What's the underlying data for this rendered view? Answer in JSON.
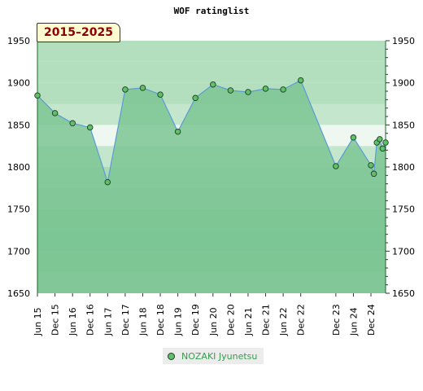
{
  "chart_data": {
    "type": "line",
    "title": "WOF ratinglist",
    "period_badge": "2015–2025",
    "ylim": [
      1650,
      1950
    ],
    "y_ticks": [
      1650,
      1700,
      1750,
      1800,
      1850,
      1900,
      1950
    ],
    "x_ticks": [
      "Jun 15",
      "Dec 15",
      "Jun 16",
      "Dec 16",
      "Jun 17",
      "Dec 17",
      "Jun 18",
      "Dec 18",
      "Jun 19",
      "Dec 19",
      "Jun 20",
      "Dec 20",
      "Jun 21",
      "Dec 21",
      "Jun 22",
      "Dec 22",
      "Dec 23",
      "Jun 24",
      "Dec 24"
    ],
    "x_tick_dates": [
      "2015-06",
      "2015-12",
      "2016-06",
      "2016-12",
      "2017-06",
      "2017-12",
      "2018-06",
      "2018-12",
      "2019-06",
      "2019-12",
      "2020-06",
      "2020-12",
      "2021-06",
      "2021-12",
      "2022-06",
      "2022-12",
      "2023-12",
      "2024-06",
      "2024-12"
    ],
    "legend_position": "bottom",
    "series": [
      {
        "name": "NOZAKI Jyunetsu",
        "points": [
          {
            "x": "2015-06",
            "y": 1885
          },
          {
            "x": "2015-12",
            "y": 1864
          },
          {
            "x": "2016-06",
            "y": 1852
          },
          {
            "x": "2016-12",
            "y": 1847
          },
          {
            "x": "2017-06",
            "y": 1782
          },
          {
            "x": "2017-12",
            "y": 1892
          },
          {
            "x": "2018-06",
            "y": 1894
          },
          {
            "x": "2018-12",
            "y": 1886
          },
          {
            "x": "2019-06",
            "y": 1842
          },
          {
            "x": "2019-12",
            "y": 1882
          },
          {
            "x": "2020-06",
            "y": 1898
          },
          {
            "x": "2020-12",
            "y": 1891
          },
          {
            "x": "2021-06",
            "y": 1889
          },
          {
            "x": "2021-12",
            "y": 1893
          },
          {
            "x": "2022-06",
            "y": 1892
          },
          {
            "x": "2022-12",
            "y": 1903
          },
          {
            "x": "2023-12",
            "y": 1801
          },
          {
            "x": "2024-06",
            "y": 1835
          },
          {
            "x": "2024-12",
            "y": 1802
          },
          {
            "x": "2025-01",
            "y": 1792
          },
          {
            "x": "2025-02",
            "y": 1829
          },
          {
            "x": "2025-03",
            "y": 1833
          },
          {
            "x": "2025-04",
            "y": 1822
          },
          {
            "x": "2025-05",
            "y": 1829
          }
        ]
      }
    ],
    "colors": {
      "fill": "#7cc594",
      "line": "#5b9bd5",
      "marker_fill": "#5fbf6a",
      "marker_stroke": "#1f3f1f"
    }
  }
}
